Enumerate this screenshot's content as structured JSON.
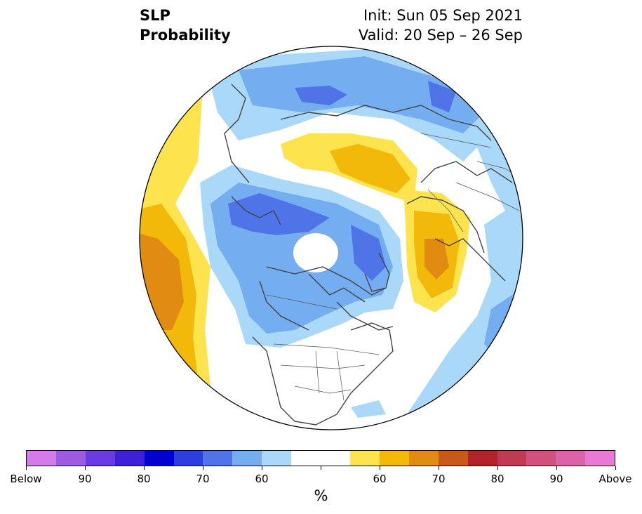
{
  "title": {
    "left_line1": "SLP",
    "left_line2": "Probability",
    "right_line1": "Init: Sun 05 Sep 2021",
    "right_line2": "Valid: 20 Sep – 26 Sep"
  },
  "colorbar": {
    "colors": [
      "#d57aea",
      "#9e5ae0",
      "#6a3be0",
      "#3f1fd8",
      "#0000d0",
      "#2a3fde",
      "#4f74e8",
      "#74aef0",
      "#aad8f8",
      "#ffffff",
      "#ffffff",
      "#fde34e",
      "#f2b90a",
      "#e08c12",
      "#c85a18",
      "#b02428",
      "#c03a54",
      "#d0507e",
      "#dc62aa",
      "#e87ad6"
    ],
    "tick_labels": [
      "Below",
      "90",
      "80",
      "70",
      "60",
      "60",
      "70",
      "80",
      "90",
      "Above"
    ],
    "unit": "%"
  },
  "map": {
    "projection": "north-polar-stereographic",
    "variable": "Sea level pressure probability",
    "anomaly_colors": {
      "below_60": "#aad8f8",
      "below_60_70": "#74aef0",
      "below_70_80": "#4f74e8",
      "above_60": "#fde34e",
      "above_60_70": "#f2b90a",
      "above_70_80": "#e08c12"
    }
  }
}
